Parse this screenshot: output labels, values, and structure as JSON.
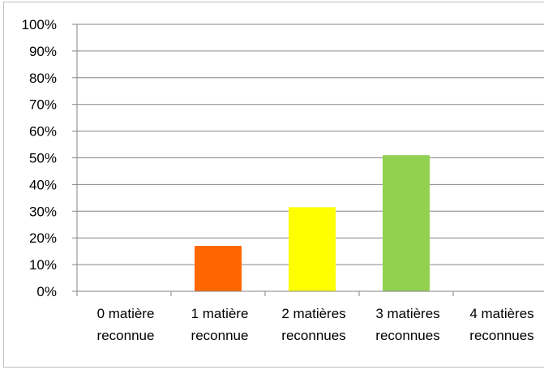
{
  "chart_data": {
    "type": "bar",
    "categories": [
      [
        "0 matière",
        "reconnue"
      ],
      [
        "1 matière",
        "reconnue"
      ],
      [
        "2 matières",
        "reconnues"
      ],
      [
        "3 matières",
        "reconnues"
      ],
      [
        "4 matières",
        "reconnues"
      ]
    ],
    "values": [
      0,
      17,
      31.5,
      51,
      0
    ],
    "colors": [
      "#ffffff",
      "#ff6600",
      "#ffff00",
      "#92d050",
      "#ffffff"
    ],
    "ylim": [
      0,
      100
    ],
    "yticks": [
      "0%",
      "10%",
      "20%",
      "30%",
      "40%",
      "50%",
      "60%",
      "70%",
      "80%",
      "90%",
      "100%"
    ],
    "grid": true,
    "title": "",
    "xlabel": "",
    "ylabel": ""
  }
}
